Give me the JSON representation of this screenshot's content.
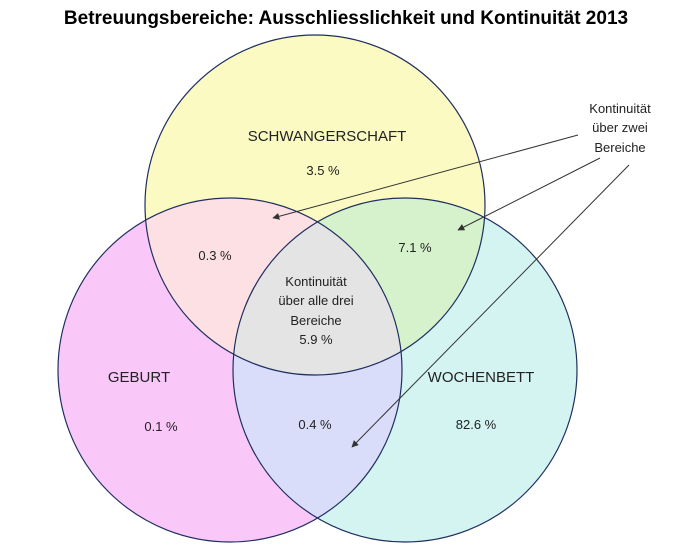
{
  "title": "Betreuungsbereiche: Ausschliesslichkeit und Kontinuität 2013",
  "sets": {
    "schwangerschaft": "SCHWANGERSCHAFT",
    "geburt": "GEBURT",
    "wochenbett": "WOCHENBETT"
  },
  "values": {
    "schwangerschaft_only": "3.5 %",
    "geburt_only": "0.1 %",
    "wochenbett_only": "82.6 %",
    "schwangerschaft_geburt": "0.3 %",
    "schwangerschaft_wochenbett": "7.1 %",
    "geburt_wochenbett": "0.4 %",
    "all_three": "5.9 %"
  },
  "center_label": [
    "Kontinuität",
    "über alle drei",
    "Bereiche"
  ],
  "callout": [
    "Kontinuität",
    "über zwei",
    "Bereiche"
  ],
  "colors": {
    "schwangerschaft": "#fafac2",
    "geburt": "#f9c8f9",
    "wochenbett": "#d3f4f1",
    "schwangerschaft_geburt": "#fde0e3",
    "schwangerschaft_wochenbett": "#d5f2cc",
    "geburt_wochenbett": "#d9ddfa",
    "all_three": "#e4e4e4",
    "outline": "#1f2f60"
  }
}
